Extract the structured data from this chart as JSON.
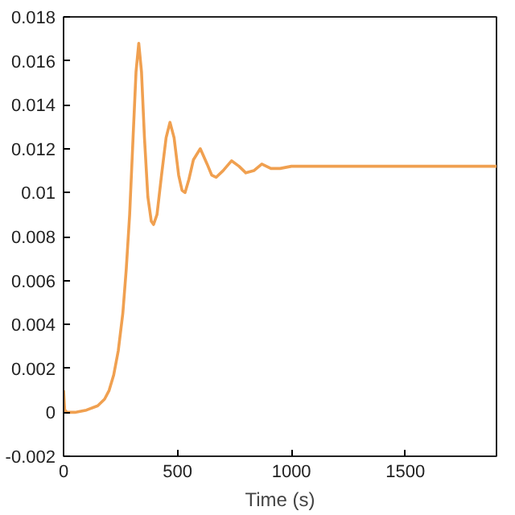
{
  "chart_data": {
    "type": "line",
    "xlabel": "Time (s)",
    "x": [
      0,
      5,
      15,
      50,
      100,
      150,
      180,
      200,
      220,
      240,
      260,
      275,
      290,
      305,
      318,
      330,
      342,
      355,
      370,
      385,
      395,
      410,
      430,
      450,
      467,
      485,
      505,
      520,
      533,
      550,
      570,
      600,
      630,
      650,
      670,
      700,
      737,
      770,
      800,
      835,
      870,
      910,
      950,
      1000,
      1100,
      1200,
      1400,
      1600,
      1900
    ],
    "series": [
      {
        "color": "#f0a050",
        "values": [
          0.001,
          0.0001,
          0.0,
          0.0,
          0.0001,
          0.0003,
          0.0006,
          0.001,
          0.0017,
          0.0028,
          0.0045,
          0.0065,
          0.009,
          0.0125,
          0.0155,
          0.0168,
          0.0155,
          0.0125,
          0.0098,
          0.0087,
          0.00855,
          0.009,
          0.0108,
          0.0125,
          0.0132,
          0.0125,
          0.0108,
          0.0101,
          0.01,
          0.0106,
          0.0115,
          0.012,
          0.0113,
          0.0108,
          0.0107,
          0.011,
          0.01145,
          0.0112,
          0.0109,
          0.011,
          0.0113,
          0.0111,
          0.0111,
          0.0112,
          0.0112,
          0.0112,
          0.0112,
          0.0112,
          0.0112
        ]
      }
    ],
    "xlim": [
      0,
      1900
    ],
    "ylim": [
      -0.002,
      0.018
    ],
    "xticks": [
      0,
      500,
      1000,
      1500
    ],
    "yticks": [
      {
        "value": -0.002,
        "label": "-0.002"
      },
      0,
      {
        "value": 0.002,
        "label": "0.002"
      },
      {
        "value": 0.004,
        "label": "0.004"
      },
      {
        "value": 0.006,
        "label": "0.006"
      },
      {
        "value": 0.008,
        "label": "0.008"
      },
      {
        "value": 0.01,
        "label": "0.01"
      },
      {
        "value": 0.012,
        "label": "0.012"
      },
      {
        "value": 0.014,
        "label": "0.014"
      },
      {
        "value": 0.016,
        "label": "0.016"
      },
      {
        "value": 0.018,
        "label": "0.018"
      }
    ],
    "grid": false,
    "line_style": "solid"
  }
}
